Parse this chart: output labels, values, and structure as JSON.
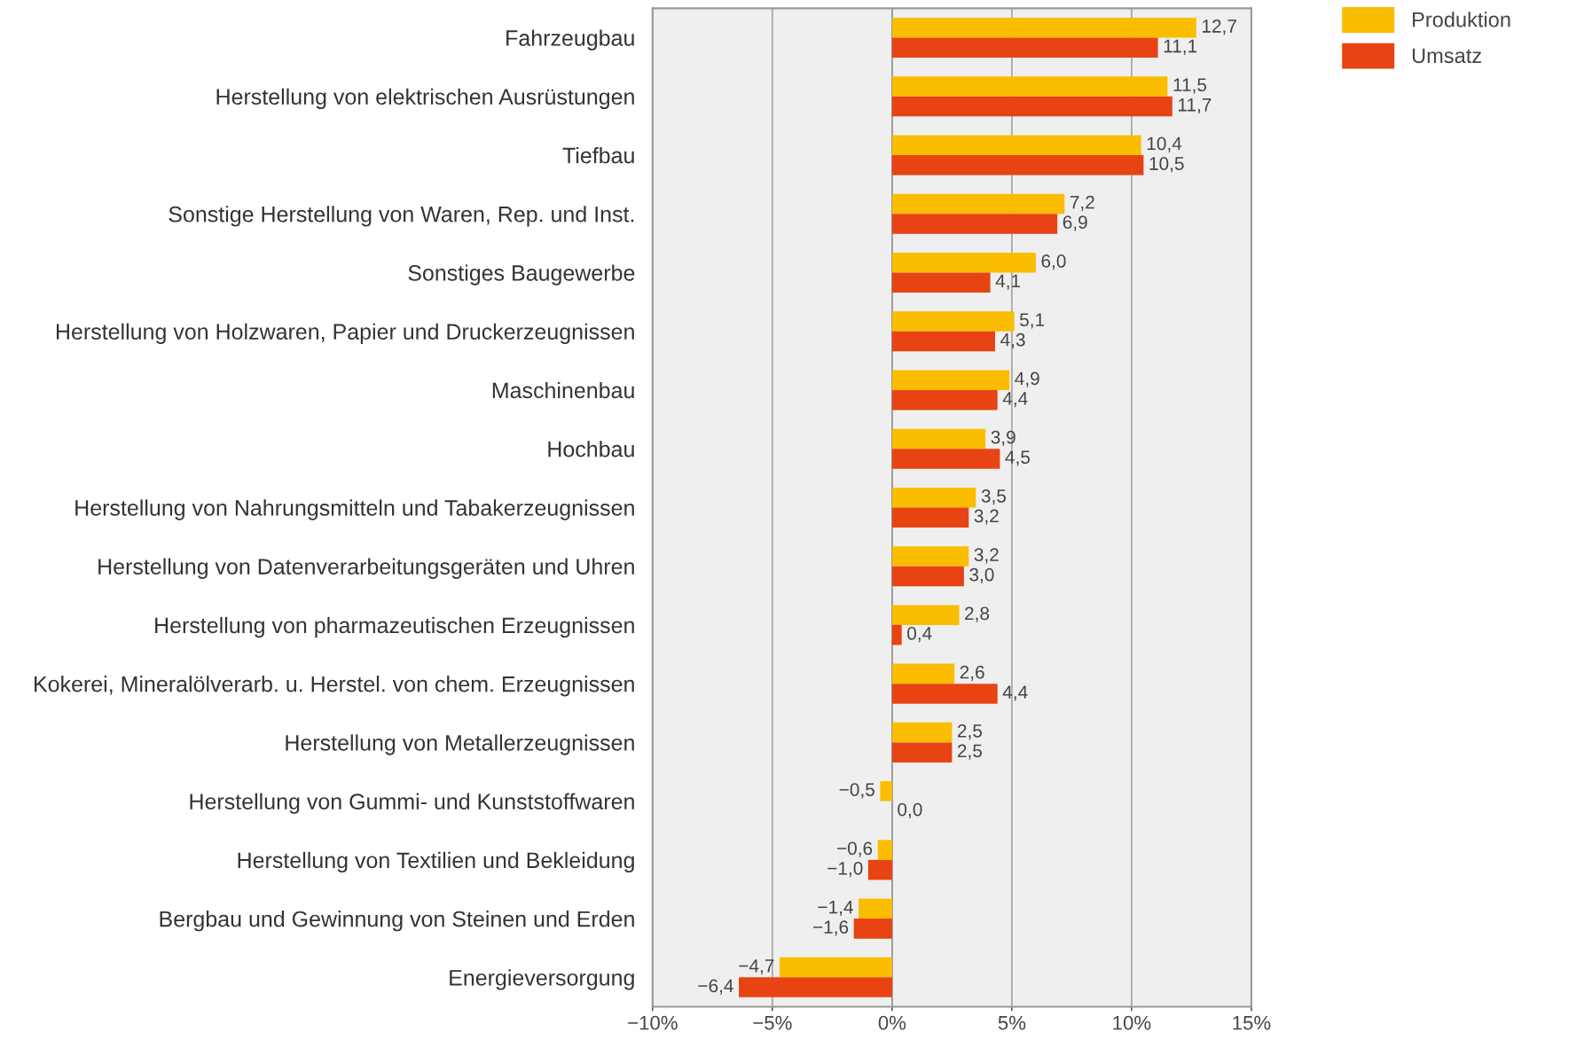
{
  "chart_data": {
    "type": "bar",
    "orientation": "horizontal",
    "categories": [
      "Fahrzeugbau",
      "Herstellung von elektrischen Ausrüstungen",
      "Tiefbau",
      "Sonstige Herstellung von Waren, Rep. und Inst.",
      "Sonstiges Baugewerbe",
      "Herstellung von Holzwaren, Papier und Druckerzeugnissen",
      "Maschinenbau",
      "Hochbau",
      "Herstellung von Nahrungsmitteln und Tabakerzeugnissen",
      "Herstellung von Datenverarbeitungsgeräten und Uhren",
      "Herstellung von pharmazeutischen Erzeugnissen",
      "Kokerei, Mineralölverarb. u. Herstel. von chem. Erzeugnissen",
      "Herstellung von Metallerzeugnissen",
      "Herstellung von Gummi- und Kunststoffwaren",
      "Herstellung von Textilien und Bekleidung",
      "Bergbau und Gewinnung von Steinen und Erden",
      "Energieversorgung"
    ],
    "series": [
      {
        "name": "Produktion",
        "color": "#fbbd00",
        "values": [
          12.7,
          11.5,
          10.4,
          7.2,
          6.0,
          5.1,
          4.9,
          3.9,
          3.5,
          3.2,
          2.8,
          2.6,
          2.5,
          -0.5,
          -0.6,
          -1.4,
          -4.7
        ],
        "value_labels": [
          "12,7",
          "11,5",
          "10,4",
          "7,2",
          "6,0",
          "5,1",
          "4,9",
          "3,9",
          "3,5",
          "3,2",
          "2,8",
          "2,6",
          "2,5",
          "−0,5",
          "−0,6",
          "−1,4",
          "−4,7"
        ]
      },
      {
        "name": "Umsatz",
        "color": "#e84313",
        "values": [
          11.1,
          11.7,
          10.5,
          6.9,
          4.1,
          4.3,
          4.4,
          4.5,
          3.2,
          3.0,
          0.4,
          4.4,
          2.5,
          0.0,
          -1.0,
          -1.6,
          -6.4
        ],
        "value_labels": [
          "11,1",
          "11,7",
          "10,5",
          "6,9",
          "4,1",
          "4,3",
          "4,4",
          "4,5",
          "3,2",
          "3,0",
          "0,4",
          "4,4",
          "2,5",
          "0,0",
          "−1,0",
          "−1,6",
          "−6,4"
        ]
      }
    ],
    "xlim": [
      -10,
      15
    ],
    "xticks": [
      {
        "value": -10,
        "label": "−10%"
      },
      {
        "value": -5,
        "label": "−5%"
      },
      {
        "value": 0,
        "label": "0%"
      },
      {
        "value": 5,
        "label": "5%"
      },
      {
        "value": 10,
        "label": "10%"
      },
      {
        "value": 15,
        "label": "15%"
      }
    ],
    "grid": "x",
    "legend": "top right"
  }
}
